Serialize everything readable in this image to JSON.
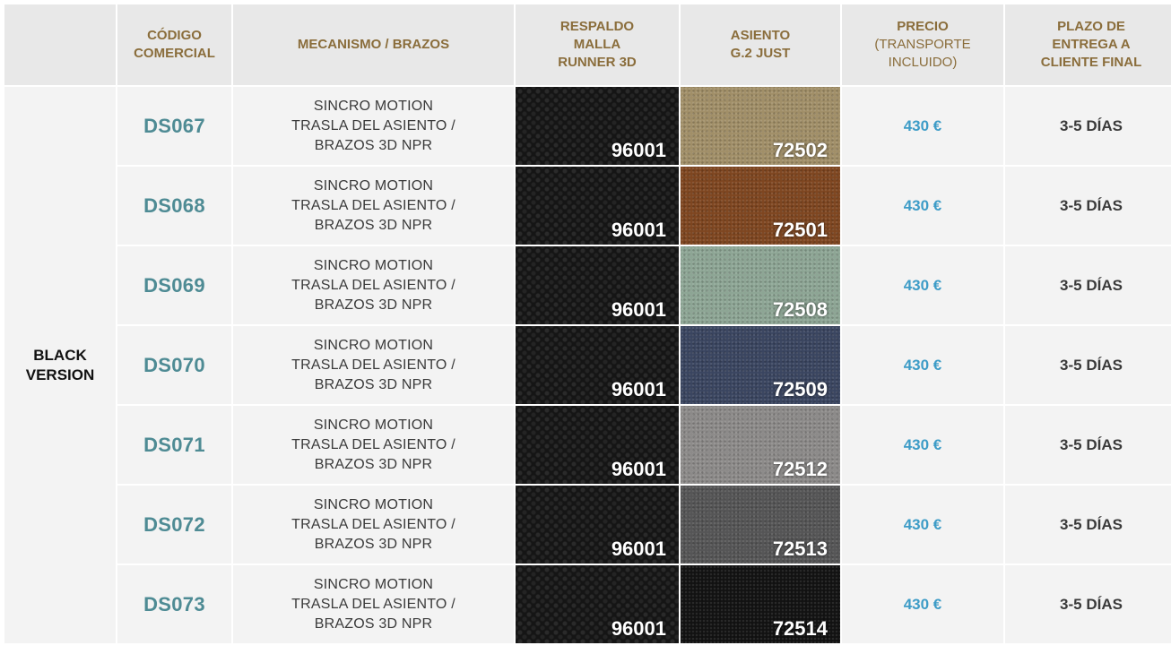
{
  "headers": {
    "version": "",
    "code": "CÓDIGO\nCOMERCIAL",
    "mechanism": "MECANISMO / BRAZOS",
    "backrest": "RESPALDO\nMALLA\nRUNNER 3D",
    "seat": "ASIENTO\nG.2 JUST",
    "price_title": "PRECIO",
    "price_sub": "(TRANSPORTE\nINCLUIDO)",
    "delivery": "PLAZO DE\nENTREGA A\nCLIENTE FINAL"
  },
  "version_label": "BLACK\nVERSION",
  "colors": {
    "header_text": "#8a6d3b",
    "code_text": "#4e8b94",
    "price_text": "#3d9cc7"
  },
  "rows": [
    {
      "code": "DS067",
      "mechanism": "SINCRO MOTION\nTRASLA DEL ASIENTO /\nBRAZOS 3D NPR",
      "backrest": "96001",
      "seat": "72502",
      "seat_color": "#a18f68",
      "price": "430 €",
      "delivery": "3-5 DÍAS"
    },
    {
      "code": "DS068",
      "mechanism": "SINCRO MOTION\nTRASLA DEL ASIENTO /\nBRAZOS 3D NPR",
      "backrest": "96001",
      "seat": "72501",
      "seat_color": "#7e4620",
      "price": "430 €",
      "delivery": "3-5 DÍAS"
    },
    {
      "code": "DS069",
      "mechanism": "SINCRO MOTION\nTRASLA DEL ASIENTO /\nBRAZOS 3D NPR",
      "backrest": "96001",
      "seat": "72508",
      "seat_color": "#8da594",
      "price": "430 €",
      "delivery": "3-5 DÍAS"
    },
    {
      "code": "DS070",
      "mechanism": "SINCRO MOTION\nTRASLA DEL ASIENTO /\nBRAZOS 3D NPR",
      "backrest": "96001",
      "seat": "72509",
      "seat_color": "#3a4560",
      "price": "430 €",
      "delivery": "3-5 DÍAS"
    },
    {
      "code": "DS071",
      "mechanism": "SINCRO MOTION\nTRASLA DEL ASIENTO /\nBRAZOS 3D NPR",
      "backrest": "96001",
      "seat": "72512",
      "seat_color": "#8c8a89",
      "price": "430 €",
      "delivery": "3-5 DÍAS"
    },
    {
      "code": "DS072",
      "mechanism": "SINCRO MOTION\nTRASLA DEL ASIENTO /\nBRAZOS 3D NPR",
      "backrest": "96001",
      "seat": "72513",
      "seat_color": "#555556",
      "price": "430 €",
      "delivery": "3-5 DÍAS"
    },
    {
      "code": "DS073",
      "mechanism": "SINCRO MOTION\nTRASLA DEL ASIENTO /\nBRAZOS 3D NPR",
      "backrest": "96001",
      "seat": "72514",
      "seat_color": "#121212",
      "price": "430 €",
      "delivery": "3-5 DÍAS"
    }
  ]
}
